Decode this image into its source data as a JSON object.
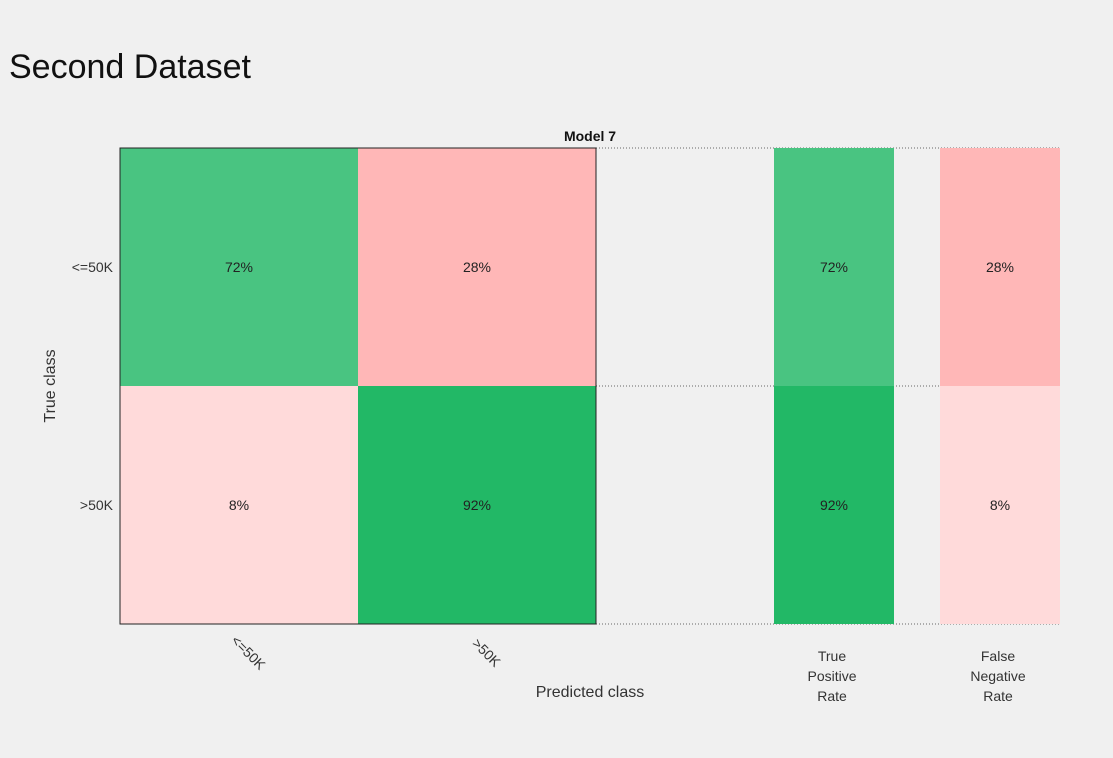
{
  "page": {
    "title": "Second Dataset"
  },
  "chart_data": {
    "type": "heatmap",
    "title": "Model 7",
    "xlabel": "Predicted class",
    "ylabel": "True class",
    "row_labels": [
      "<=50K",
      ">50K"
    ],
    "col_labels": [
      "<=50K",
      ">50K"
    ],
    "matrix_percent": [
      [
        72,
        28
      ],
      [
        8,
        92
      ]
    ],
    "summary_columns": [
      {
        "label_lines": [
          "True",
          "Positive",
          "Rate"
        ],
        "values": [
          72,
          92
        ],
        "kind": "correct"
      },
      {
        "label_lines": [
          "False",
          "Negative",
          "Rate"
        ],
        "values": [
          28,
          8
        ],
        "kind": "incorrect"
      }
    ],
    "value_suffix": "%",
    "colors": {
      "correct": "#13b35b",
      "incorrect": "#ff7b7b",
      "zero_blend": "#ffffff"
    }
  }
}
